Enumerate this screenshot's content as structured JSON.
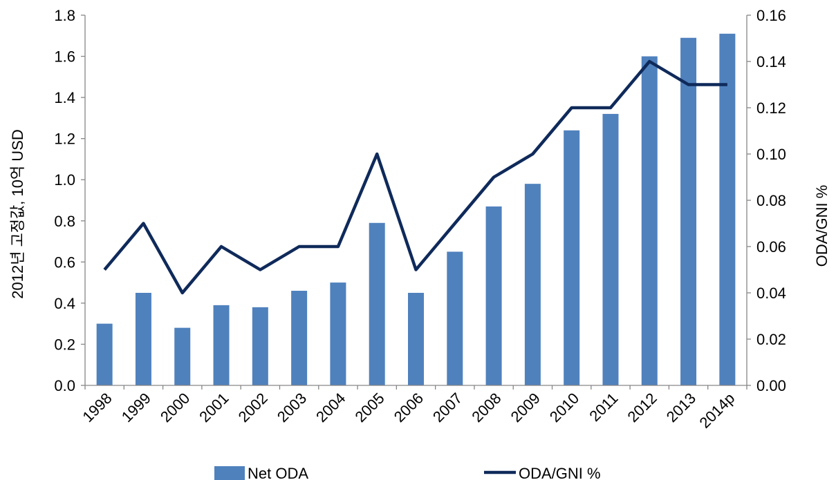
{
  "chart_data": {
    "type": "bar",
    "categories": [
      "1998",
      "1999",
      "2000",
      "2001",
      "2002",
      "2003",
      "2004",
      "2005",
      "2006",
      "2007",
      "2008",
      "2009",
      "2010",
      "2011",
      "2012",
      "2013",
      "2014p"
    ],
    "series": [
      {
        "name": "Net ODA",
        "type": "bar",
        "axis": "left",
        "color": "#4F81BD",
        "values": [
          0.3,
          0.45,
          0.28,
          0.39,
          0.38,
          0.46,
          0.5,
          0.79,
          0.45,
          0.65,
          0.87,
          0.98,
          1.24,
          1.32,
          1.6,
          1.69,
          1.71
        ]
      },
      {
        "name": "ODA/GNI %",
        "type": "line",
        "axis": "right",
        "color": "#0F2A5A",
        "values": [
          0.05,
          0.07,
          0.04,
          0.06,
          0.05,
          0.06,
          0.06,
          0.1,
          0.05,
          0.07,
          0.09,
          0.1,
          0.12,
          0.12,
          0.14,
          0.13,
          0.13
        ]
      }
    ],
    "ylabel": "2012년 고정값, 10억 USD",
    "y2label": "ODA/GNI %",
    "ylim": [
      0,
      1.8
    ],
    "y2lim": [
      0,
      0.16
    ],
    "yticks": [
      "0.0",
      "0.2",
      "0.4",
      "0.6",
      "0.8",
      "1.0",
      "1.2",
      "1.4",
      "1.6",
      "1.8"
    ],
    "y2ticks": [
      "0.00",
      "0.02",
      "0.04",
      "0.06",
      "0.08",
      "0.10",
      "0.12",
      "0.14",
      "0.16"
    ],
    "grid": false,
    "legend": "bottom"
  }
}
